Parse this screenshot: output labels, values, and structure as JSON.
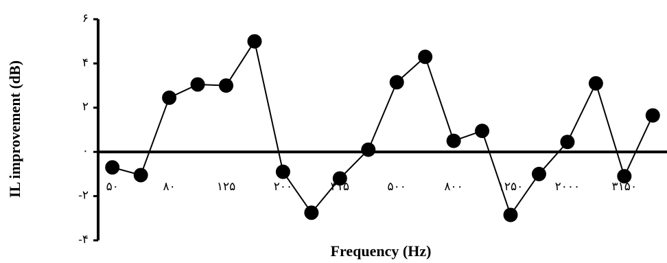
{
  "chart_data": {
    "type": "line",
    "xlabel": "Frequency (Hz)",
    "ylabel": "IL improvement (dB)",
    "categories": [
      "۵۰",
      null,
      "۸۰",
      null,
      "۱۲۵",
      null,
      "۲۰۰",
      null,
      "۳۱۵",
      null,
      "۵۰۰",
      null,
      "۸۰۰",
      null,
      "۱۲۵۰",
      null,
      "۲۰۰۰",
      null,
      "۳۱۵۰",
      null
    ],
    "values": [
      -0.7,
      -1.05,
      2.45,
      3.05,
      3.0,
      5.0,
      -0.9,
      -2.75,
      -1.2,
      0.1,
      3.15,
      4.3,
      0.5,
      0.95,
      -2.85,
      -1.0,
      0.45,
      3.1,
      -1.1,
      1.65
    ],
    "color": "#000000",
    "ylim": [
      -4,
      6
    ],
    "yticks": [
      {
        "value": -4,
        "label": "-۴"
      },
      {
        "value": -2,
        "label": "-۲"
      },
      {
        "value": 0,
        "label": "۰"
      },
      {
        "value": 2,
        "label": "۲"
      },
      {
        "value": 4,
        "label": "۴"
      },
      {
        "value": 6,
        "label": "۶"
      }
    ]
  }
}
